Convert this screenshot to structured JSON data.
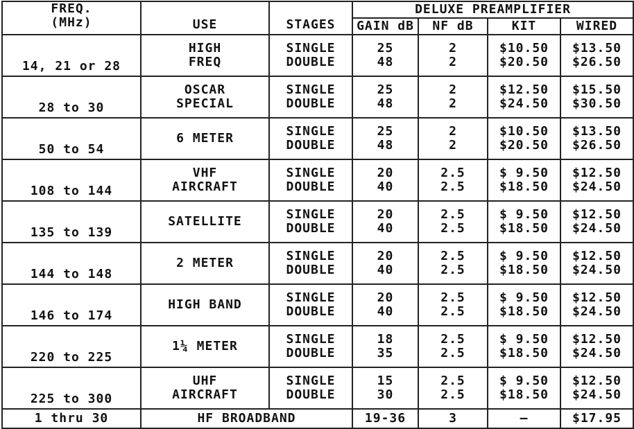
{
  "header": {
    "group": "DELUXE PREAMPLIFIER",
    "columns": [
      [
        "FREQ.",
        "(MHz)"
      ],
      [
        "USE"
      ],
      [
        "STAGES"
      ],
      [
        "GAIN dB"
      ],
      [
        "NF dB"
      ],
      [
        "KIT"
      ],
      [
        "WIRED"
      ]
    ]
  },
  "rows": [
    {
      "freq": "14, 21 or 28",
      "use": [
        "HIGH",
        "FREQ"
      ],
      "stages": [
        "SINGLE",
        "DOUBLE"
      ],
      "gain": [
        "25",
        "48"
      ],
      "nf": [
        "2",
        "2"
      ],
      "kit": [
        "$10.50",
        "$20.50"
      ],
      "wired": [
        "$13.50",
        "$26.50"
      ]
    },
    {
      "freq": "28 to 30",
      "use": [
        "OSCAR",
        "SPECIAL"
      ],
      "stages": [
        "SINGLE",
        "DOUBLE"
      ],
      "gain": [
        "25",
        "48"
      ],
      "nf": [
        "2",
        "2"
      ],
      "kit": [
        "$12.50",
        "$24.50"
      ],
      "wired": [
        "$15.50",
        "$30.50"
      ]
    },
    {
      "freq": "50 to 54",
      "use": [
        "6 METER"
      ],
      "stages": [
        "SINGLE",
        "DOUBLE"
      ],
      "gain": [
        "25",
        "48"
      ],
      "nf": [
        "2",
        "2"
      ],
      "kit": [
        "$10.50",
        "$20.50"
      ],
      "wired": [
        "$13.50",
        "$26.50"
      ]
    },
    {
      "freq": "108 to 144",
      "use": [
        "VHF",
        "AIRCRAFT"
      ],
      "stages": [
        "SINGLE",
        "DOUBLE"
      ],
      "gain": [
        "20",
        "40"
      ],
      "nf": [
        "2.5",
        "2.5"
      ],
      "kit": [
        "$ 9.50",
        "$18.50"
      ],
      "wired": [
        "$12.50",
        "$24.50"
      ]
    },
    {
      "freq": "135 to 139",
      "use": [
        "SATELLITE"
      ],
      "stages": [
        "SINGLE",
        "DOUBLE"
      ],
      "gain": [
        "20",
        "40"
      ],
      "nf": [
        "2.5",
        "2.5"
      ],
      "kit": [
        "$ 9.50",
        "$18.50"
      ],
      "wired": [
        "$12.50",
        "$24.50"
      ]
    },
    {
      "freq": "144 to 148",
      "use": [
        "2 METER"
      ],
      "stages": [
        "SINGLE",
        "DOUBLE"
      ],
      "gain": [
        "20",
        "40"
      ],
      "nf": [
        "2.5",
        "2.5"
      ],
      "kit": [
        "$ 9.50",
        "$18.50"
      ],
      "wired": [
        "$12.50",
        "$24.50"
      ]
    },
    {
      "freq": "146 to 174",
      "use": [
        "HIGH BAND"
      ],
      "stages": [
        "SINGLE",
        "DOUBLE"
      ],
      "gain": [
        "20",
        "40"
      ],
      "nf": [
        "2.5",
        "2.5"
      ],
      "kit": [
        "$ 9.50",
        "$18.50"
      ],
      "wired": [
        "$12.50",
        "$24.50"
      ]
    },
    {
      "freq": "220 to 225",
      "use": [
        "1¼ METER"
      ],
      "stages": [
        "SINGLE",
        "DOUBLE"
      ],
      "gain": [
        "18",
        "35"
      ],
      "nf": [
        "2.5",
        "2.5"
      ],
      "kit": [
        "$ 9.50",
        "$18.50"
      ],
      "wired": [
        "$12.50",
        "$24.50"
      ]
    },
    {
      "freq": "225 to 300",
      "use": [
        "UHF",
        "AIRCRAFT"
      ],
      "stages": [
        "SINGLE",
        "DOUBLE"
      ],
      "gain": [
        "15",
        "30"
      ],
      "nf": [
        "2.5",
        "2.5"
      ],
      "kit": [
        "$ 9.50",
        "$18.50"
      ],
      "wired": [
        "$12.50",
        "$24.50"
      ]
    }
  ],
  "last_row": {
    "freq": "1 thru 30",
    "use": "HF BROADBAND",
    "gain": "19-36",
    "nf": "3",
    "kit": "—",
    "wired": "$17.95"
  }
}
